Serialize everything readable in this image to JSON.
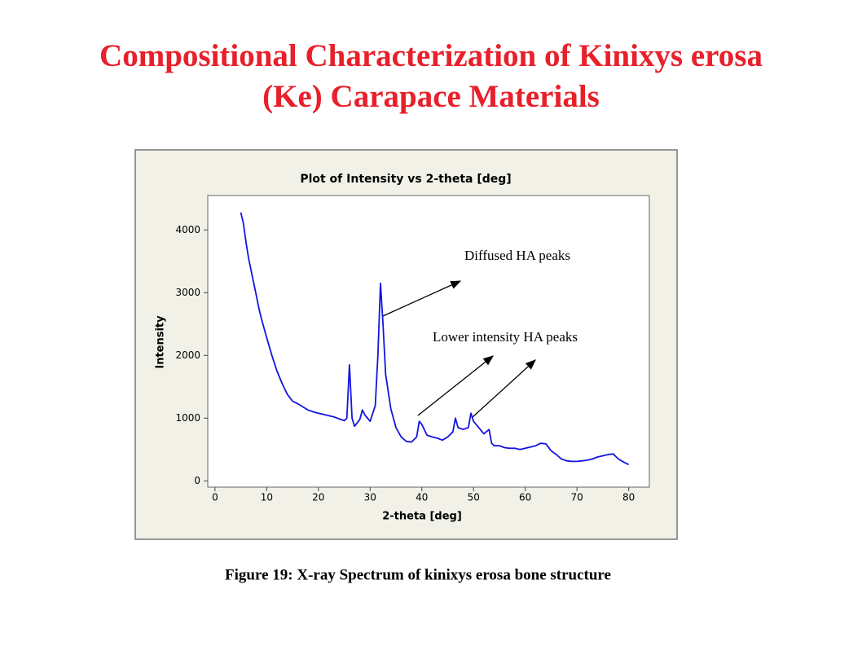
{
  "slide_title": [
    "Compositional Characterization of Kinixys erosa",
    "(Ke) Carapace Materials"
  ],
  "chart_data": {
    "type": "line",
    "title": "Plot of Intensity vs 2-theta [deg]",
    "xlabel": "2-theta [deg]",
    "ylabel": "Intensity",
    "xlim": [
      -1.4,
      84
    ],
    "ylim": [
      -100,
      4550
    ],
    "xticks": [
      0,
      10,
      20,
      30,
      40,
      50,
      60,
      70,
      80
    ],
    "yticks": [
      0,
      1000,
      2000,
      3000,
      4000
    ],
    "grid": false,
    "series": [
      {
        "name": "Intensity",
        "color": "#1414e0",
        "x": [
          5,
          5.5,
          6,
          6.5,
          7,
          7.5,
          8,
          8.5,
          9,
          9.5,
          10,
          11,
          12,
          13,
          14,
          15,
          16,
          17,
          18,
          19,
          20,
          21,
          22,
          23,
          24,
          25,
          25.5,
          26,
          26.5,
          27,
          28,
          28.5,
          29,
          30,
          31,
          31.5,
          32,
          32.5,
          33,
          34,
          35,
          36,
          37,
          38,
          39,
          39.5,
          40,
          41,
          42,
          43,
          44,
          45,
          46,
          46.5,
          47,
          48,
          49,
          49.5,
          50,
          51,
          52,
          53,
          53.5,
          54,
          55,
          56,
          57,
          58,
          59,
          60,
          61,
          62,
          63,
          64,
          65,
          66,
          67,
          68,
          69,
          70,
          71,
          72,
          73,
          74,
          75,
          76,
          77,
          78,
          79,
          80
        ],
        "values": [
          4280,
          4100,
          3800,
          3550,
          3350,
          3150,
          2950,
          2750,
          2580,
          2430,
          2280,
          2000,
          1750,
          1550,
          1380,
          1270,
          1230,
          1180,
          1130,
          1100,
          1080,
          1060,
          1040,
          1020,
          990,
          960,
          1000,
          1850,
          1000,
          870,
          980,
          1130,
          1050,
          950,
          1200,
          2000,
          3150,
          2500,
          1700,
          1150,
          850,
          700,
          630,
          620,
          700,
          950,
          900,
          730,
          700,
          680,
          650,
          700,
          780,
          1000,
          850,
          820,
          850,
          1080,
          950,
          850,
          750,
          820,
          600,
          560,
          560,
          530,
          520,
          520,
          500,
          520,
          540,
          560,
          600,
          590,
          480,
          420,
          350,
          320,
          310,
          310,
          320,
          330,
          350,
          380,
          400,
          420,
          430,
          350,
          300,
          260
        ]
      }
    ],
    "annotations": [
      "Diffused HA peaks",
      "Lower intensity HA peaks"
    ]
  },
  "caption": "Figure 19: X-ray Spectrum of kinixys erosa bone structure"
}
